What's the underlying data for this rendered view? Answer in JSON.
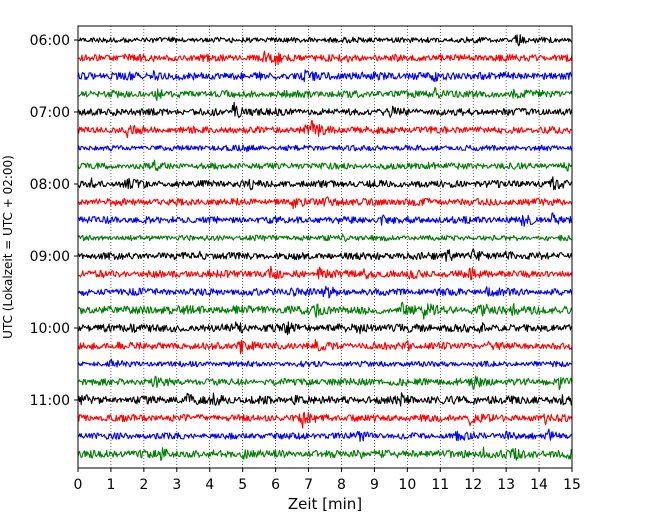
{
  "chart_data": {
    "type": "line",
    "title": "",
    "xlabel": "Zeit  [min]",
    "ylabel": "UTC (Lokalzeit = UTC + 02:00)",
    "xlim": [
      0,
      15
    ],
    "x_ticks": [
      "0",
      "1",
      "2",
      "3",
      "4",
      "5",
      "6",
      "7",
      "8",
      "9",
      "10",
      "11",
      "12",
      "13",
      "14",
      "15"
    ],
    "y_ticks": [
      "06:00",
      "07:00",
      "08:00",
      "09:00",
      "10:00",
      "11:00"
    ],
    "trace_interval_minutes": 15,
    "trace_colors": [
      "#000000",
      "#ff0000",
      "#0000ff",
      "#008000"
    ],
    "grid": {
      "vertical_dotted": true
    },
    "traces": [
      {
        "start": "06:00",
        "color": "#000000",
        "amp": 0.35,
        "events": [
          [
            13.3,
            1.0
          ]
        ]
      },
      {
        "start": "06:15",
        "color": "#ff0000",
        "amp": 0.45,
        "events": [
          [
            1.3,
            0.6
          ],
          [
            5.6,
            0.9
          ],
          [
            6.0,
            0.8
          ],
          [
            8.1,
            0.5
          ]
        ]
      },
      {
        "start": "06:30",
        "color": "#0000ff",
        "amp": 0.5,
        "events": [
          [
            2.3,
            0.5
          ],
          [
            6.9,
            0.9
          ],
          [
            10.8,
            0.4
          ]
        ]
      },
      {
        "start": "06:45",
        "color": "#008000",
        "amp": 0.45,
        "events": [
          [
            2.4,
            0.7
          ],
          [
            10.8,
            0.9
          ],
          [
            13.2,
            0.6
          ]
        ]
      },
      {
        "start": "07:00",
        "color": "#000000",
        "amp": 0.45,
        "events": [
          [
            1.0,
            0.6
          ],
          [
            4.7,
            1.6
          ],
          [
            9.5,
            0.6
          ]
        ]
      },
      {
        "start": "07:15",
        "color": "#ff0000",
        "amp": 0.45,
        "events": [
          [
            1.5,
            0.9
          ],
          [
            7.1,
            1.4
          ],
          [
            6.9,
            0.8
          ]
        ]
      },
      {
        "start": "07:30",
        "color": "#0000ff",
        "amp": 0.35,
        "events": [
          [
            5.0,
            0.4
          ]
        ]
      },
      {
        "start": "07:45",
        "color": "#008000",
        "amp": 0.4,
        "events": [
          [
            2.3,
            0.6
          ],
          [
            10.6,
            0.5
          ],
          [
            14.8,
            0.6
          ]
        ]
      },
      {
        "start": "08:00",
        "color": "#000000",
        "amp": 0.45,
        "events": [
          [
            0.3,
            0.9
          ],
          [
            1.5,
            0.6
          ],
          [
            5.2,
            0.6
          ],
          [
            14.4,
            0.8
          ]
        ]
      },
      {
        "start": "08:15",
        "color": "#ff0000",
        "amp": 0.45,
        "events": [
          [
            6.5,
            0.9
          ],
          [
            7.5,
            0.8
          ]
        ]
      },
      {
        "start": "08:30",
        "color": "#0000ff",
        "amp": 0.45,
        "events": [
          [
            9.2,
            0.5
          ],
          [
            13.5,
            0.9
          ],
          [
            14.4,
            1.0
          ]
        ]
      },
      {
        "start": "08:45",
        "color": "#008000",
        "amp": 0.35,
        "events": [
          [
            8.0,
            0.5
          ]
        ]
      },
      {
        "start": "09:00",
        "color": "#000000",
        "amp": 0.45,
        "events": [
          [
            3.7,
            0.6
          ],
          [
            11.2,
            1.0
          ],
          [
            12.0,
            0.7
          ],
          [
            13.0,
            0.8
          ]
        ]
      },
      {
        "start": "09:15",
        "color": "#ff0000",
        "amp": 0.45,
        "events": [
          [
            5.8,
            1.2
          ],
          [
            7.3,
            0.9
          ],
          [
            8.7,
            0.7
          ],
          [
            10.0,
            0.8
          ],
          [
            11.9,
            0.8
          ]
        ]
      },
      {
        "start": "09:30",
        "color": "#0000ff",
        "amp": 0.45,
        "events": [
          [
            6.5,
            0.6
          ],
          [
            7.5,
            1.0
          ],
          [
            12.3,
            0.8
          ]
        ]
      },
      {
        "start": "09:45",
        "color": "#008000",
        "amp": 0.55,
        "events": [
          [
            7.2,
            0.8
          ],
          [
            9.8,
            1.0
          ],
          [
            10.5,
            0.9
          ],
          [
            12.2,
            0.8
          ],
          [
            13.2,
            0.8
          ]
        ]
      },
      {
        "start": "10:00",
        "color": "#000000",
        "amp": 0.5,
        "events": [
          [
            1.6,
            0.9
          ],
          [
            4.8,
            0.8
          ],
          [
            6.3,
            0.7
          ],
          [
            8.5,
            0.6
          ],
          [
            12.2,
            0.6
          ]
        ]
      },
      {
        "start": "10:15",
        "color": "#ff0000",
        "amp": 0.45,
        "events": [
          [
            1.2,
            0.6
          ],
          [
            4.9,
            1.2
          ],
          [
            7.2,
            0.6
          ],
          [
            10.0,
            0.5
          ],
          [
            12.4,
            0.5
          ]
        ]
      },
      {
        "start": "10:30",
        "color": "#0000ff",
        "amp": 0.35,
        "events": [
          [
            1.0,
            0.5
          ]
        ]
      },
      {
        "start": "10:45",
        "color": "#008000",
        "amp": 0.45,
        "events": [
          [
            2.3,
            0.6
          ],
          [
            12.0,
            0.7
          ],
          [
            14.6,
            1.0
          ]
        ]
      },
      {
        "start": "11:00",
        "color": "#000000",
        "amp": 0.5,
        "events": [
          [
            0.1,
            0.7
          ],
          [
            3.3,
            0.9
          ],
          [
            4.1,
            0.8
          ],
          [
            6.6,
            0.8
          ],
          [
            9.8,
            0.7
          ],
          [
            12.0,
            0.7
          ],
          [
            14.7,
            0.7
          ]
        ]
      },
      {
        "start": "11:15",
        "color": "#ff0000",
        "amp": 0.45,
        "events": [
          [
            6.8,
            1.4
          ],
          [
            11.9,
            0.9
          ],
          [
            14.2,
            0.6
          ]
        ]
      },
      {
        "start": "11:30",
        "color": "#0000ff",
        "amp": 0.4,
        "events": [
          [
            8.5,
            1.0
          ],
          [
            11.5,
            0.8
          ],
          [
            13.0,
            0.7
          ],
          [
            14.3,
            0.8
          ]
        ]
      },
      {
        "start": "11:45",
        "color": "#008000",
        "amp": 0.5,
        "events": [
          [
            2.5,
            0.7
          ],
          [
            5.0,
            0.6
          ],
          [
            8.5,
            0.7
          ],
          [
            12.3,
            0.9
          ],
          [
            13.2,
            0.7
          ],
          [
            14.7,
            0.9
          ]
        ]
      }
    ]
  }
}
